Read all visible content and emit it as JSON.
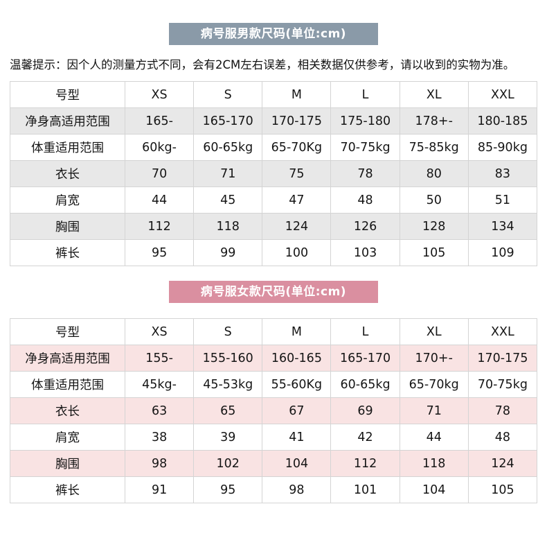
{
  "tip": "温馨提示：因个人的测量方式不同，会有2CM左右误差，相关数据仅供参考，请以收到的实物为准。",
  "tables": [
    {
      "title": "病号服男款尺码(单位:cm)",
      "badge_color": "#8a9aa8",
      "stripe_color": "#e8e8e8",
      "header": [
        "号型",
        "XS",
        "S",
        "M",
        "L",
        "XL",
        "XXL"
      ],
      "rows": [
        [
          "净身高适用范围",
          "165-",
          "165-170",
          "170-175",
          "175-180",
          "178+-",
          "180-185"
        ],
        [
          "体重适用范围",
          "60kg-",
          "60-65kg",
          "65-70Kg",
          "70-75kg",
          "75-85kg",
          "85-90kg"
        ],
        [
          "衣长",
          "70",
          "71",
          "75",
          "78",
          "80",
          "83"
        ],
        [
          "肩宽",
          "44",
          "45",
          "47",
          "48",
          "50",
          "51"
        ],
        [
          "胸围",
          "112",
          "118",
          "124",
          "126",
          "128",
          "134"
        ],
        [
          "裤长",
          "95",
          "99",
          "100",
          "103",
          "105",
          "109"
        ]
      ]
    },
    {
      "title": "病号服女款尺码(单位:cm)",
      "badge_color": "#da8fa0",
      "stripe_color": "#f9e3e3",
      "header": [
        "号型",
        "XS",
        "S",
        "M",
        "L",
        "XL",
        "XXL"
      ],
      "rows": [
        [
          "净身高适用范围",
          "155-",
          "155-160",
          "160-165",
          "165-170",
          "170+-",
          "170-175"
        ],
        [
          "体重适用范围",
          "45kg-",
          "45-53kg",
          "55-60Kg",
          "60-65kg",
          "65-70kg",
          "70-75kg"
        ],
        [
          "衣长",
          "63",
          "65",
          "67",
          "69",
          "71",
          "78"
        ],
        [
          "肩宽",
          "38",
          "39",
          "41",
          "42",
          "44",
          "48"
        ],
        [
          "胸围",
          "98",
          "102",
          "104",
          "112",
          "118",
          "124"
        ],
        [
          "裤长",
          "91",
          "95",
          "98",
          "101",
          "104",
          "105"
        ]
      ]
    }
  ]
}
